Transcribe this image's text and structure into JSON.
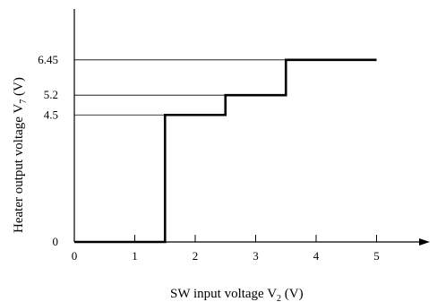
{
  "chart_data": {
    "type": "line",
    "x_ticks": [
      "0",
      "1",
      "2",
      "3",
      "4",
      "5"
    ],
    "y_ticks": [
      {
        "label": "0",
        "value": 0
      },
      {
        "label": "4.5",
        "value": 4.5
      },
      {
        "label": "5.2",
        "value": 5.2
      },
      {
        "label": "6.45",
        "value": 6.45
      }
    ],
    "xlabel": {
      "text": "SW input voltage  V",
      "sub": "2",
      "suffix": " (V)"
    },
    "ylabel": {
      "text": "Heater output voltage  V",
      "sub": "7",
      "suffix": " (V)"
    },
    "series": [
      {
        "x": [
          0,
          1.5,
          1.5,
          2.5,
          2.5,
          3.5,
          3.5,
          5
        ],
        "y": [
          0,
          0,
          4.5,
          4.5,
          5.2,
          5.2,
          6.45,
          6.45
        ]
      }
    ],
    "xlim": [
      0,
      5.9
    ],
    "ylim": [
      0,
      9.1
    ],
    "grid": false
  }
}
